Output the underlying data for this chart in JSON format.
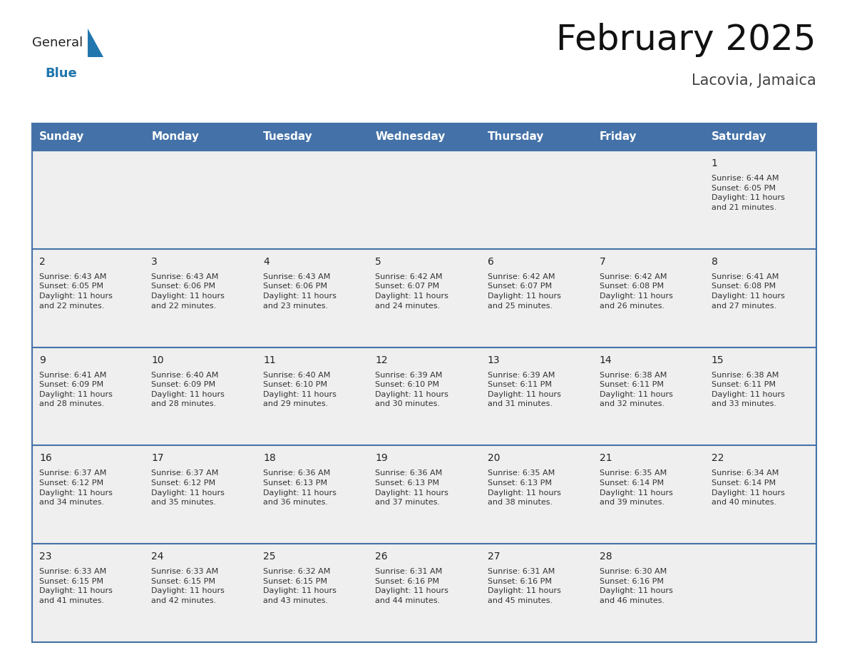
{
  "title": "February 2025",
  "subtitle": "Lacovia, Jamaica",
  "header_bg_color": "#4472A8",
  "header_text_color": "#FFFFFF",
  "cell_bg_color": "#EFEFEF",
  "cell_border_color": "#4472A8",
  "day_names": [
    "Sunday",
    "Monday",
    "Tuesday",
    "Wednesday",
    "Thursday",
    "Friday",
    "Saturday"
  ],
  "days": [
    {
      "date": 1,
      "col": 6,
      "row": 0,
      "sunrise": "6:44 AM",
      "sunset": "6:05 PM",
      "daylight": "11 hours and 21 minutes."
    },
    {
      "date": 2,
      "col": 0,
      "row": 1,
      "sunrise": "6:43 AM",
      "sunset": "6:05 PM",
      "daylight": "11 hours and 22 minutes."
    },
    {
      "date": 3,
      "col": 1,
      "row": 1,
      "sunrise": "6:43 AM",
      "sunset": "6:06 PM",
      "daylight": "11 hours and 22 minutes."
    },
    {
      "date": 4,
      "col": 2,
      "row": 1,
      "sunrise": "6:43 AM",
      "sunset": "6:06 PM",
      "daylight": "11 hours and 23 minutes."
    },
    {
      "date": 5,
      "col": 3,
      "row": 1,
      "sunrise": "6:42 AM",
      "sunset": "6:07 PM",
      "daylight": "11 hours and 24 minutes."
    },
    {
      "date": 6,
      "col": 4,
      "row": 1,
      "sunrise": "6:42 AM",
      "sunset": "6:07 PM",
      "daylight": "11 hours and 25 minutes."
    },
    {
      "date": 7,
      "col": 5,
      "row": 1,
      "sunrise": "6:42 AM",
      "sunset": "6:08 PM",
      "daylight": "11 hours and 26 minutes."
    },
    {
      "date": 8,
      "col": 6,
      "row": 1,
      "sunrise": "6:41 AM",
      "sunset": "6:08 PM",
      "daylight": "11 hours and 27 minutes."
    },
    {
      "date": 9,
      "col": 0,
      "row": 2,
      "sunrise": "6:41 AM",
      "sunset": "6:09 PM",
      "daylight": "11 hours and 28 minutes."
    },
    {
      "date": 10,
      "col": 1,
      "row": 2,
      "sunrise": "6:40 AM",
      "sunset": "6:09 PM",
      "daylight": "11 hours and 28 minutes."
    },
    {
      "date": 11,
      "col": 2,
      "row": 2,
      "sunrise": "6:40 AM",
      "sunset": "6:10 PM",
      "daylight": "11 hours and 29 minutes."
    },
    {
      "date": 12,
      "col": 3,
      "row": 2,
      "sunrise": "6:39 AM",
      "sunset": "6:10 PM",
      "daylight": "11 hours and 30 minutes."
    },
    {
      "date": 13,
      "col": 4,
      "row": 2,
      "sunrise": "6:39 AM",
      "sunset": "6:11 PM",
      "daylight": "11 hours and 31 minutes."
    },
    {
      "date": 14,
      "col": 5,
      "row": 2,
      "sunrise": "6:38 AM",
      "sunset": "6:11 PM",
      "daylight": "11 hours and 32 minutes."
    },
    {
      "date": 15,
      "col": 6,
      "row": 2,
      "sunrise": "6:38 AM",
      "sunset": "6:11 PM",
      "daylight": "11 hours and 33 minutes."
    },
    {
      "date": 16,
      "col": 0,
      "row": 3,
      "sunrise": "6:37 AM",
      "sunset": "6:12 PM",
      "daylight": "11 hours and 34 minutes."
    },
    {
      "date": 17,
      "col": 1,
      "row": 3,
      "sunrise": "6:37 AM",
      "sunset": "6:12 PM",
      "daylight": "11 hours and 35 minutes."
    },
    {
      "date": 18,
      "col": 2,
      "row": 3,
      "sunrise": "6:36 AM",
      "sunset": "6:13 PM",
      "daylight": "11 hours and 36 minutes."
    },
    {
      "date": 19,
      "col": 3,
      "row": 3,
      "sunrise": "6:36 AM",
      "sunset": "6:13 PM",
      "daylight": "11 hours and 37 minutes."
    },
    {
      "date": 20,
      "col": 4,
      "row": 3,
      "sunrise": "6:35 AM",
      "sunset": "6:13 PM",
      "daylight": "11 hours and 38 minutes."
    },
    {
      "date": 21,
      "col": 5,
      "row": 3,
      "sunrise": "6:35 AM",
      "sunset": "6:14 PM",
      "daylight": "11 hours and 39 minutes."
    },
    {
      "date": 22,
      "col": 6,
      "row": 3,
      "sunrise": "6:34 AM",
      "sunset": "6:14 PM",
      "daylight": "11 hours and 40 minutes."
    },
    {
      "date": 23,
      "col": 0,
      "row": 4,
      "sunrise": "6:33 AM",
      "sunset": "6:15 PM",
      "daylight": "11 hours and 41 minutes."
    },
    {
      "date": 24,
      "col": 1,
      "row": 4,
      "sunrise": "6:33 AM",
      "sunset": "6:15 PM",
      "daylight": "11 hours and 42 minutes."
    },
    {
      "date": 25,
      "col": 2,
      "row": 4,
      "sunrise": "6:32 AM",
      "sunset": "6:15 PM",
      "daylight": "11 hours and 43 minutes."
    },
    {
      "date": 26,
      "col": 3,
      "row": 4,
      "sunrise": "6:31 AM",
      "sunset": "6:16 PM",
      "daylight": "11 hours and 44 minutes."
    },
    {
      "date": 27,
      "col": 4,
      "row": 4,
      "sunrise": "6:31 AM",
      "sunset": "6:16 PM",
      "daylight": "11 hours and 45 minutes."
    },
    {
      "date": 28,
      "col": 5,
      "row": 4,
      "sunrise": "6:30 AM",
      "sunset": "6:16 PM",
      "daylight": "11 hours and 46 minutes."
    }
  ],
  "num_rows": 5,
  "num_cols": 7,
  "logo_general_color": "#222222",
  "logo_blue_color": "#2176AE",
  "logo_triangle_color": "#2176AE",
  "title_fontsize": 36,
  "subtitle_fontsize": 15,
  "header_fontsize": 11,
  "date_fontsize": 10,
  "info_fontsize": 8
}
